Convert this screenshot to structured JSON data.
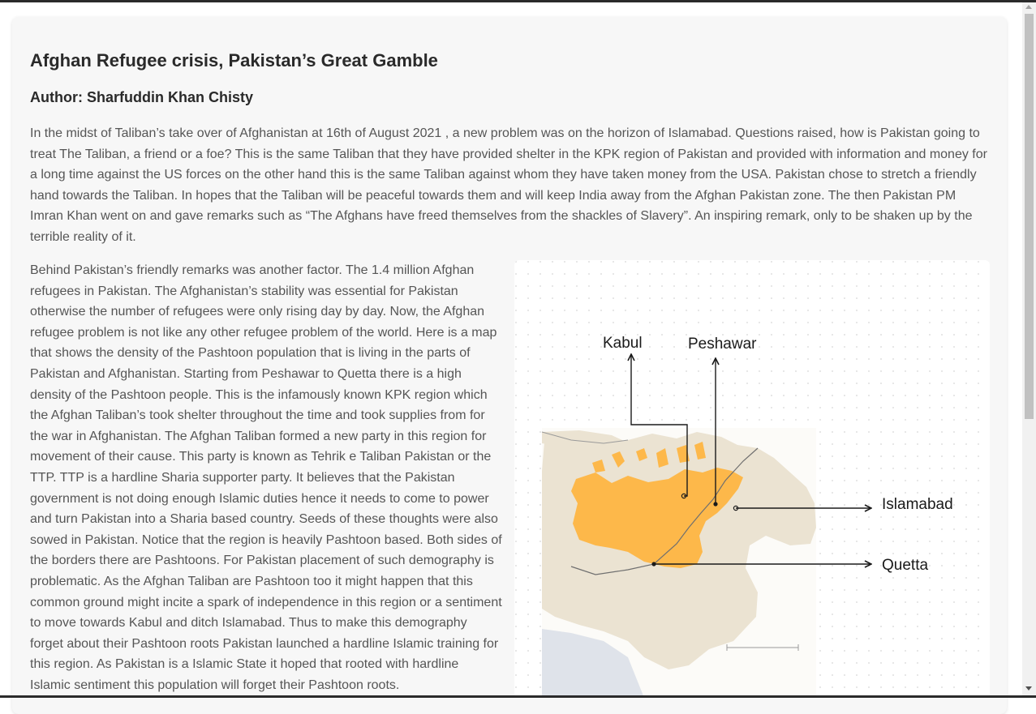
{
  "article": {
    "title": "Afghan Refugee crisis, Pakistan’s Great Gamble",
    "author": "Author: Sharfuddin Khan Chisty",
    "paragraph_1": "In the midst of Taliban’s take over of Afghanistan at 16th of August 2021 , a new problem was on the horizon of Islamabad. Questions raised, how is Pakistan going to treat The Taliban, a friend or a foe? This is the same Taliban that they have provided shelter in the KPK region of Pakistan and provided with information and money for a long time against the US forces on the other hand this is the same Taliban against whom they have taken money from the USA. Pakistan chose to stretch a friendly hand towards the Taliban. In hopes that the Taliban will be peaceful towards them and will keep India away from the Afghan Pakistan zone. The then Pakistan PM Imran Khan went on and gave remarks such as “The Afghans have freed themselves from the shackles of Slavery”. An inspiring remark, only to be shaken up by the terrible reality of it.",
    "paragraph_2": "Behind Pakistan’s friendly remarks was another factor. The 1.4 million Afghan refugees in Pakistan. The Afghanistan’s stability was essential for Pakistan otherwise the number of refugees were only rising day by day. Now, the Afghan refugee problem is not like any other refugee problem of the world. Here is a map that shows the density of the Pashtoon population that is living in the parts of Pakistan and Afghanistan. Starting from Peshawar to Quetta there is a high density of the Pashtoon people. This is the infamously known KPK region which the Afghan Taliban’s took shelter throughout the time and took supplies from for the war in Afghanistan. The Afghan Taliban formed a new party in this region for movement of their cause. This party is known as Tehrik e Taliban Pakistan or the TTP. TTP is a hardline Sharia supporter party. It believes that the Pakistan government is not doing enough Islamic duties hence it needs to come to power and turn Pakistan into a Sharia based country. Seeds of these thoughts were also sowed in Pakistan. Notice that the region is heavily Pashtoon based. Both sides of the borders there are Pashtoons. For Pakistan placement of such demography is problematic. As the Afghan Taliban are Pashtoon too it might happen that this common ground might incite a spark of independence in this region or a sentiment to move towards Kabul and ditch Islamabad. Thus to make this demography forget about their Pashtoon roots Pakistan launched a hardline Islamic training for this region. As Pakistan is a Islamic State it hoped that rooted with hardline Islamic sentiment this population will forget their Pashtoon roots."
  },
  "map": {
    "labels": {
      "kabul": "Kabul",
      "peshawar": "Peshawar",
      "islamabad": "Islamabad",
      "quetta": "Quetta"
    },
    "colors": {
      "pashtoon_area": "#fdb84a",
      "land": "#ebe3d2",
      "water": "#dfe3ea",
      "background": "#fcfbf8",
      "arrows": "#1a1a1a"
    }
  }
}
